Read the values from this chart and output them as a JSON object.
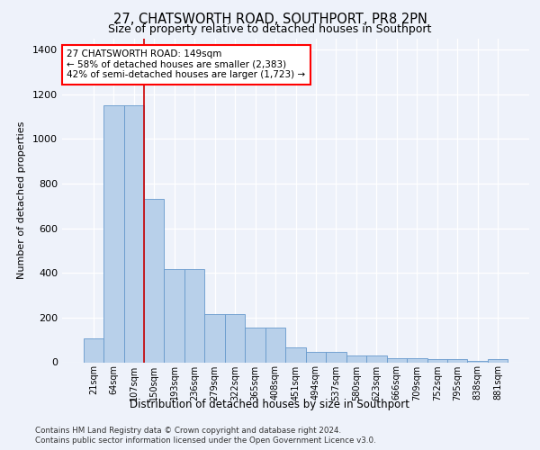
{
  "title_line1": "27, CHATSWORTH ROAD, SOUTHPORT, PR8 2PN",
  "title_line2": "Size of property relative to detached houses in Southport",
  "xlabel": "Distribution of detached houses by size in Southport",
  "ylabel": "Number of detached properties",
  "categories": [
    "21sqm",
    "64sqm",
    "107sqm",
    "150sqm",
    "193sqm",
    "236sqm",
    "279sqm",
    "322sqm",
    "365sqm",
    "408sqm",
    "451sqm",
    "494sqm",
    "537sqm",
    "580sqm",
    "623sqm",
    "666sqm",
    "709sqm",
    "752sqm",
    "795sqm",
    "838sqm",
    "881sqm"
  ],
  "values": [
    105,
    1150,
    1150,
    730,
    415,
    415,
    215,
    215,
    155,
    155,
    65,
    47,
    47,
    30,
    30,
    18,
    18,
    13,
    13,
    5,
    13
  ],
  "bar_color": "#b8d0ea",
  "bar_edge_color": "#6699cc",
  "annotation_text_line1": "27 CHATSWORTH ROAD: 149sqm",
  "annotation_text_line2": "← 58% of detached houses are smaller (2,383)",
  "annotation_text_line3": "42% of semi-detached houses are larger (1,723) →",
  "vline_color": "#cc0000",
  "vline_x": 2.5,
  "ylim": [
    0,
    1450
  ],
  "yticks": [
    0,
    200,
    400,
    600,
    800,
    1000,
    1200,
    1400
  ],
  "footer_line1": "Contains HM Land Registry data © Crown copyright and database right 2024.",
  "footer_line2": "Contains public sector information licensed under the Open Government Licence v3.0.",
  "background_color": "#eef2fa"
}
